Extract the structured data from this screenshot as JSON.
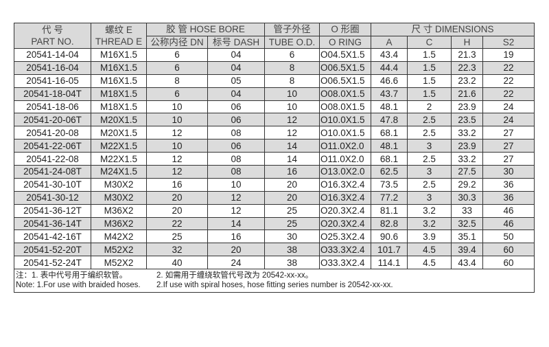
{
  "header": {
    "part_no_cn": "代 号",
    "part_no_en": "PART NO.",
    "thread_cn": "螺纹 E",
    "thread_en": "THREAD E",
    "hose_bore": "胶 管 HOSE BORE",
    "dn": "公称内径 DN",
    "dash": "标号 DASH",
    "tube_cn": "管子外径",
    "tube_en": "TUBE O.D.",
    "oring_cn": "O 形圈",
    "oring_en": "O RING",
    "dimensions": "尺 寸 DIMENSIONS",
    "a": "A",
    "c": "C",
    "h": "H",
    "s2": "S2"
  },
  "rows": [
    [
      "20541-14-04",
      "M16X1.5",
      "6",
      "04",
      "6",
      "O04.5X1.5",
      "43.4",
      "1.5",
      "21.3",
      "19"
    ],
    [
      "20541-16-04",
      "M16X1.5",
      "6",
      "04",
      "8",
      "O06.5X1.5",
      "44.4",
      "1.5",
      "22.3",
      "22"
    ],
    [
      "20541-16-05",
      "M16X1.5",
      "8",
      "05",
      "8",
      "O06.5X1.5",
      "46.6",
      "1.5",
      "23.2",
      "22"
    ],
    [
      "20541-18-04T",
      "M18X1.5",
      "6",
      "04",
      "10",
      "O08.0X1.5",
      "43.7",
      "1.5",
      "21.6",
      "22"
    ],
    [
      "20541-18-06",
      "M18X1.5",
      "10",
      "06",
      "10",
      "O08.0X1.5",
      "48.1",
      "2",
      "23.9",
      "24"
    ],
    [
      "20541-20-06T",
      "M20X1.5",
      "10",
      "06",
      "12",
      "O10.0X1.5",
      "47.8",
      "2.5",
      "23.5",
      "24"
    ],
    [
      "20541-20-08",
      "M20X1.5",
      "12",
      "08",
      "12",
      "O10.0X1.5",
      "68.1",
      "2.5",
      "33.2",
      "27"
    ],
    [
      "20541-22-06T",
      "M22X1.5",
      "10",
      "06",
      "14",
      "O11.0X2.0",
      "48.1",
      "3",
      "23.9",
      "27"
    ],
    [
      "20541-22-08",
      "M22X1.5",
      "12",
      "08",
      "14",
      "O11.0X2.0",
      "68.1",
      "2.5",
      "33.2",
      "27"
    ],
    [
      "20541-24-08T",
      "M24X1.5",
      "12",
      "08",
      "16",
      "O13.0X2.0",
      "62.5",
      "3",
      "27.5",
      "30"
    ],
    [
      "20541-30-10T",
      "M30X2",
      "16",
      "10",
      "20",
      "O16.3X2.4",
      "73.5",
      "2.5",
      "29.2",
      "36"
    ],
    [
      "20541-30-12",
      "M30X2",
      "20",
      "12",
      "20",
      "O16.3X2.4",
      "77.2",
      "3",
      "30.3",
      "36"
    ],
    [
      "20541-36-12T",
      "M36X2",
      "20",
      "12",
      "25",
      "O20.3X2.4",
      "81.1",
      "3.2",
      "33",
      "46"
    ],
    [
      "20541-36-14T",
      "M36X2",
      "22",
      "14",
      "25",
      "O20.3X2.4",
      "82.8",
      "3.2",
      "32.5",
      "46"
    ],
    [
      "20541-42-16T",
      "M42X2",
      "25",
      "16",
      "30",
      "O25.3X2.4",
      "90.6",
      "3.9",
      "35.1",
      "50"
    ],
    [
      "20541-52-20T",
      "M52X2",
      "32",
      "20",
      "38",
      "O33.3X2.4",
      "101.7",
      "4.5",
      "39.4",
      "60"
    ],
    [
      "20541-52-24T",
      "M52X2",
      "40",
      "24",
      "38",
      "O33.3X2.4",
      "114.1",
      "4.5",
      "43.4",
      "60"
    ]
  ],
  "notes": {
    "cn_1": "注：1. 表中代号用于编织软管。",
    "cn_2": "2. 如需用于缠绕软管代号改为 20542-xx-xx。",
    "en_1": "Note: 1.For use with braided hoses.",
    "en_2": "2.If use with spiral hoses, hose fitting series number is 20542-xx-xx."
  }
}
